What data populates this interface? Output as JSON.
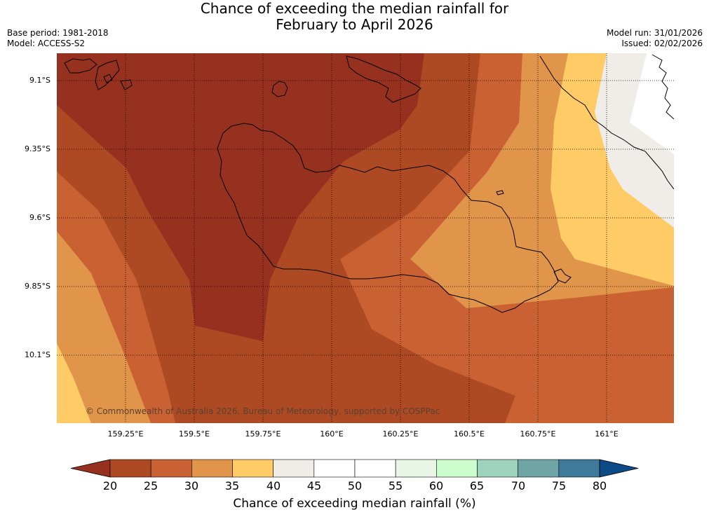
{
  "header": {
    "title_line1": "Chance of exceeding the median rainfall for",
    "title_line2": "February to April 2026",
    "base_period": "Base period: 1981-2018",
    "model": "Model: ACCESS-S2",
    "model_run": "Model run: 31/01/2026",
    "issued": "Issued: 02/02/2026"
  },
  "map": {
    "region": "Guadalcanal, Solomon Islands",
    "lat_labels": [
      "9.1°S",
      "9.35°S",
      "9.6°S",
      "9.85°S",
      "10.1°S"
    ],
    "lon_labels": [
      "159.25°E",
      "159.5°E",
      "159.75°E",
      "160°E",
      "160.25°E",
      "160.5°E",
      "160.75°E",
      "161°E"
    ],
    "copyright": "© Commonwealth of Australia 2026, Bureau of Meteorology, supported by COSPPac"
  },
  "colorbar": {
    "title": "Chance of exceeding median rainfall (%)",
    "ticks": [
      "20",
      "25",
      "30",
      "35",
      "40",
      "45",
      "50",
      "55",
      "60",
      "65",
      "70",
      "75",
      "80"
    ],
    "under_color": "#96301f",
    "over_color": "#0d4a87",
    "colors": [
      "#ad4a23",
      "#ca6132",
      "#e0954a",
      "#fecb66",
      "#f0ede8",
      "#ffffff",
      "#ffffff",
      "#e9f5e7",
      "#ccfdcc",
      "#9dd3bd",
      "#6fa5a7",
      "#3f7a9b"
    ]
  }
}
